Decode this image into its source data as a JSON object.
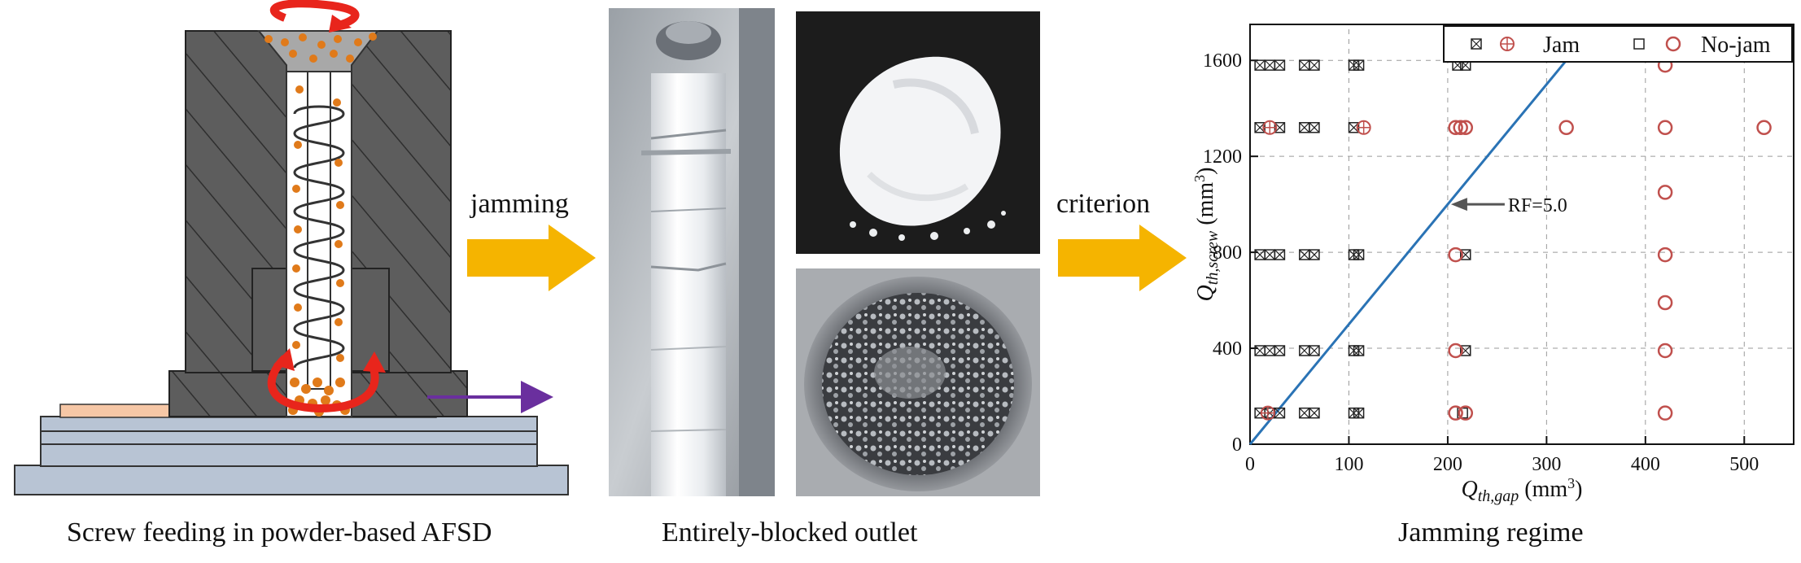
{
  "panels": {
    "left_caption": "Screw feeding in powder-based AFSD",
    "middle_caption": "Entirely-blocked outlet",
    "right_caption": "Jamming regime"
  },
  "arrows": {
    "first_label": "jamming",
    "second_label": "criterion"
  },
  "colors": {
    "machine_gray": "#5a5a5a",
    "powder_orange": "#e07a1a",
    "rotation_red": "#e8251c",
    "travel_purple": "#6a2f9e",
    "flow_arrow": "#f5b400",
    "criterion_line": "#2a73b5",
    "jam_red": "#c0504d",
    "substrate_peach": "#f6c7a6",
    "base_blue": "#b8c4d4"
  },
  "chart_data": {
    "type": "scatter",
    "xlabel_main": "Q",
    "xlabel_sub": "th,gap",
    "xlabel_unit": " (mm",
    "xlabel_unit_sup": "3",
    "xlabel_unit_end": ")",
    "ylabel_main": "Q",
    "ylabel_sub": "th,screw",
    "ylabel_unit": " (mm",
    "ylabel_unit_sup": "3",
    "ylabel_unit_end": ")",
    "xlim": [
      0,
      550
    ],
    "ylim": [
      0,
      1750
    ],
    "xticks": [
      0,
      100,
      200,
      300,
      400,
      500
    ],
    "yticks": [
      0,
      400,
      800,
      1200,
      1600
    ],
    "grid": true,
    "legend_position": "top-right",
    "legend": {
      "jam_label": "Jam",
      "nojam_label": "No-jam"
    },
    "criterion": {
      "label": "RF=5.0",
      "x": [
        0,
        320
      ],
      "y": [
        0,
        1600
      ],
      "annotation_at": [
        200,
        1000
      ]
    },
    "series": [
      {
        "kind": "jam-box",
        "points": [
          [
            10,
            130
          ],
          [
            20,
            130
          ],
          [
            30,
            130
          ],
          [
            10,
            390
          ],
          [
            20,
            390
          ],
          [
            30,
            390
          ],
          [
            10,
            790
          ],
          [
            20,
            790
          ],
          [
            30,
            790
          ],
          [
            10,
            1320
          ],
          [
            30,
            1320
          ],
          [
            10,
            1580
          ],
          [
            20,
            1580
          ],
          [
            30,
            1580
          ],
          [
            55,
            130
          ],
          [
            65,
            130
          ],
          [
            55,
            390
          ],
          [
            65,
            390
          ],
          [
            55,
            790
          ],
          [
            65,
            790
          ],
          [
            55,
            1320
          ],
          [
            65,
            1320
          ],
          [
            55,
            1580
          ],
          [
            65,
            1580
          ],
          [
            105,
            130
          ],
          [
            110,
            130
          ],
          [
            105,
            390
          ],
          [
            110,
            390
          ],
          [
            105,
            790
          ],
          [
            110,
            790
          ],
          [
            105,
            1320
          ],
          [
            105,
            1580
          ],
          [
            110,
            1580
          ],
          [
            210,
            1580
          ],
          [
            218,
            1580
          ],
          [
            218,
            390
          ],
          [
            218,
            790
          ]
        ]
      },
      {
        "kind": "jam-circle",
        "points": [
          [
            20,
            1320
          ],
          [
            115,
            1320
          ],
          [
            18,
            130
          ]
        ]
      },
      {
        "kind": "nojam-box",
        "points": [
          [
            215,
            130
          ]
        ]
      },
      {
        "kind": "nojam-circle",
        "points": [
          [
            208,
            130
          ],
          [
            218,
            130
          ],
          [
            208,
            390
          ],
          [
            208,
            790
          ],
          [
            208,
            1320
          ],
          [
            213,
            1320
          ],
          [
            218,
            1320
          ],
          [
            320,
            1320
          ],
          [
            420,
            1320
          ],
          [
            520,
            1320
          ],
          [
            420,
            1580
          ],
          [
            420,
            1050
          ],
          [
            420,
            790
          ],
          [
            420,
            590
          ],
          [
            420,
            390
          ],
          [
            420,
            130
          ]
        ]
      }
    ]
  }
}
